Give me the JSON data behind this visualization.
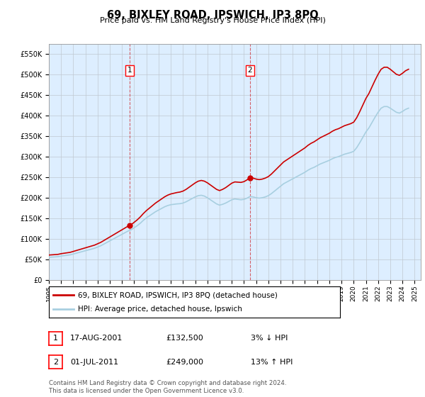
{
  "title": "69, BIXLEY ROAD, IPSWICH, IP3 8PQ",
  "subtitle": "Price paid vs. HM Land Registry's House Price Index (HPI)",
  "ylim": [
    0,
    575000
  ],
  "xlim_start": 1995.0,
  "xlim_end": 2025.5,
  "hpi_color": "#a8cfe0",
  "price_color": "#cc0000",
  "marker_color": "#cc0000",
  "bg_color": "#ddeeff",
  "grid_color": "#c0c8d0",
  "purchase1_x": 2001.625,
  "purchase1_y": 132500,
  "purchase2_x": 2011.5,
  "purchase2_y": 249000,
  "legend_label1": "69, BIXLEY ROAD, IPSWICH, IP3 8PQ (detached house)",
  "legend_label2": "HPI: Average price, detached house, Ipswich",
  "table_row1": [
    "1",
    "17-AUG-2001",
    "£132,500",
    "3% ↓ HPI"
  ],
  "table_row2": [
    "2",
    "01-JUL-2011",
    "£249,000",
    "13% ↑ HPI"
  ],
  "footer": "Contains HM Land Registry data © Crown copyright and database right 2024.\nThis data is licensed under the Open Government Licence v3.0.",
  "hpi_data_years": [
    1995.0,
    1995.25,
    1995.5,
    1995.75,
    1996.0,
    1996.25,
    1996.5,
    1996.75,
    1997.0,
    1997.25,
    1997.5,
    1997.75,
    1998.0,
    1998.25,
    1998.5,
    1998.75,
    1999.0,
    1999.25,
    1999.5,
    1999.75,
    2000.0,
    2000.25,
    2000.5,
    2000.75,
    2001.0,
    2001.25,
    2001.5,
    2001.75,
    2002.0,
    2002.25,
    2002.5,
    2002.75,
    2003.0,
    2003.25,
    2003.5,
    2003.75,
    2004.0,
    2004.25,
    2004.5,
    2004.75,
    2005.0,
    2005.25,
    2005.5,
    2005.75,
    2006.0,
    2006.25,
    2006.5,
    2006.75,
    2007.0,
    2007.25,
    2007.5,
    2007.75,
    2008.0,
    2008.25,
    2008.5,
    2008.75,
    2009.0,
    2009.25,
    2009.5,
    2009.75,
    2010.0,
    2010.25,
    2010.5,
    2010.75,
    2011.0,
    2011.25,
    2011.5,
    2011.75,
    2012.0,
    2012.25,
    2012.5,
    2012.75,
    2013.0,
    2013.25,
    2013.5,
    2013.75,
    2014.0,
    2014.25,
    2014.5,
    2014.75,
    2015.0,
    2015.25,
    2015.5,
    2015.75,
    2016.0,
    2016.25,
    2016.5,
    2016.75,
    2017.0,
    2017.25,
    2017.5,
    2017.75,
    2018.0,
    2018.25,
    2018.5,
    2018.75,
    2019.0,
    2019.25,
    2019.5,
    2019.75,
    2020.0,
    2020.25,
    2020.5,
    2020.75,
    2021.0,
    2021.25,
    2021.5,
    2021.75,
    2022.0,
    2022.25,
    2022.5,
    2022.75,
    2023.0,
    2023.25,
    2023.5,
    2023.75,
    2024.0,
    2024.25,
    2024.5
  ],
  "hpi_values": [
    55000,
    55500,
    56000,
    56500,
    58000,
    59000,
    60000,
    61000,
    63000,
    65000,
    67000,
    69000,
    71000,
    73000,
    75000,
    77000,
    80000,
    83000,
    87000,
    91000,
    95000,
    99000,
    103000,
    107000,
    111000,
    115000,
    119000,
    122000,
    127000,
    132000,
    138000,
    145000,
    151000,
    156000,
    161000,
    166000,
    170000,
    174000,
    178000,
    181000,
    183000,
    184000,
    185000,
    185500,
    187000,
    190000,
    194000,
    198000,
    202000,
    205000,
    206000,
    204000,
    200000,
    195000,
    190000,
    185000,
    182000,
    184000,
    187000,
    191000,
    195000,
    197000,
    196000,
    195000,
    196000,
    199000,
    203000,
    202000,
    200000,
    199000,
    200000,
    202000,
    205000,
    210000,
    216000,
    222000,
    228000,
    234000,
    238000,
    242000,
    246000,
    250000,
    254000,
    258000,
    262000,
    267000,
    271000,
    274000,
    278000,
    282000,
    285000,
    288000,
    291000,
    295000,
    298000,
    300000,
    303000,
    306000,
    308000,
    310000,
    313000,
    322000,
    334000,
    347000,
    360000,
    370000,
    383000,
    396000,
    408000,
    418000,
    422000,
    422000,
    418000,
    413000,
    408000,
    406000,
    410000,
    415000,
    418000
  ],
  "xtick_years": [
    1995,
    1996,
    1997,
    1998,
    1999,
    2000,
    2001,
    2002,
    2003,
    2004,
    2005,
    2006,
    2007,
    2008,
    2009,
    2010,
    2011,
    2012,
    2013,
    2014,
    2015,
    2016,
    2017,
    2018,
    2019,
    2020,
    2021,
    2022,
    2023,
    2024,
    2025
  ]
}
